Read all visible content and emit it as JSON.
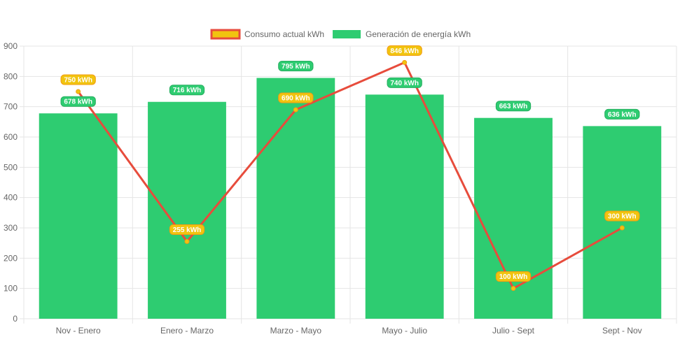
{
  "chart_data": {
    "type": "bar",
    "categories": [
      "Nov - Enero",
      "Enero - Marzo",
      "Marzo - Mayo",
      "Mayo - Julio",
      "Julio - Sept",
      "Sept - Nov"
    ],
    "ylim": [
      0,
      900
    ],
    "yticks": [
      0,
      100,
      200,
      300,
      400,
      500,
      600,
      700,
      800,
      900
    ],
    "grid": true,
    "legend_position": "top-center",
    "unit": "kWh",
    "series": [
      {
        "name": "Generación de energía kWh",
        "kind": "bar",
        "color": "#2ecc71",
        "values": [
          678,
          716,
          795,
          740,
          663,
          636
        ],
        "labels": [
          "678 kWh",
          "716 kWh",
          "795 kWh",
          "740 kWh",
          "663 kWh",
          "636 kWh"
        ]
      },
      {
        "name": "Consumo actual kWh",
        "kind": "line",
        "color": "#e74c3c",
        "fill_color": "#f1c40f",
        "label_color": "#f39c12",
        "values": [
          750,
          255,
          690,
          846,
          100,
          300
        ],
        "labels": [
          "750 kWh",
          "255 kWh",
          "690 kWh",
          "846 kWh",
          "100 kWh",
          "300 kWh"
        ]
      }
    ]
  }
}
